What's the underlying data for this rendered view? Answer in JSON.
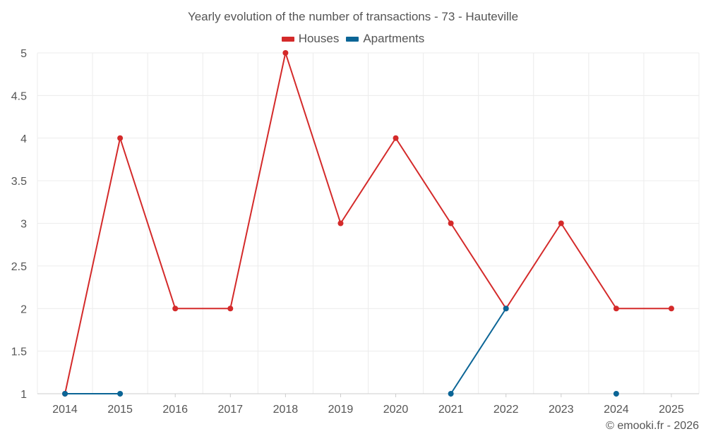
{
  "chart_data": {
    "type": "line",
    "title": "Yearly evolution of the number of transactions - 73 - Hauteville",
    "xlabel": "",
    "ylabel": "",
    "categories": [
      "2014",
      "2015",
      "2016",
      "2017",
      "2018",
      "2019",
      "2020",
      "2021",
      "2022",
      "2023",
      "2024",
      "2025"
    ],
    "ylim": [
      1,
      5
    ],
    "yticks": [
      "1",
      "1.5",
      "2",
      "2.5",
      "3",
      "3.5",
      "4",
      "4.5",
      "5"
    ],
    "grid": true,
    "legend_position": "top-center",
    "series": [
      {
        "name": "Houses",
        "color": "#d42a2a",
        "values": [
          1,
          4,
          2,
          2,
          5,
          3,
          4,
          3,
          2,
          3,
          2,
          2
        ]
      },
      {
        "name": "Apartments",
        "color": "#0b6596",
        "values": [
          1,
          1,
          null,
          null,
          null,
          null,
          null,
          1,
          2,
          null,
          1,
          null
        ]
      }
    ]
  },
  "credit": "© emooki.fr - 2026"
}
